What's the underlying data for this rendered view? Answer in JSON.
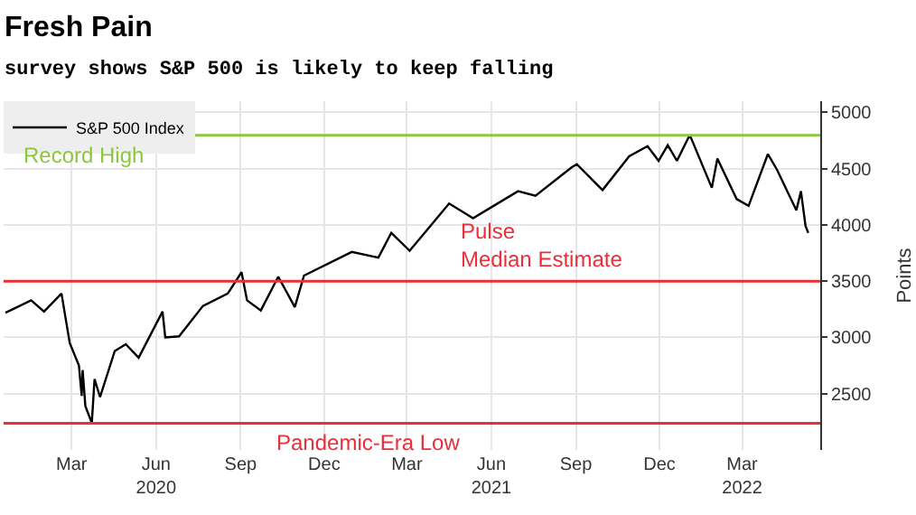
{
  "chart_data": {
    "type": "line",
    "title": "Fresh Pain",
    "subtitle": "survey shows S&P 500 is likely to keep falling",
    "ylabel": "Points",
    "x": [
      "2019-12-20",
      "2020-01-17",
      "2020-01-31",
      "2020-02-19",
      "2020-02-28",
      "2020-03-09",
      "2020-03-12",
      "2020-03-13",
      "2020-03-16",
      "2020-03-23",
      "2020-03-26",
      "2020-04-01",
      "2020-04-17",
      "2020-04-29",
      "2020-05-13",
      "2020-06-08",
      "2020-06-11",
      "2020-06-26",
      "2020-07-22",
      "2020-08-18",
      "2020-09-02",
      "2020-09-08",
      "2020-09-23",
      "2020-10-12",
      "2020-10-30",
      "2020-11-09",
      "2020-12-31",
      "2021-01-29",
      "2021-02-12",
      "2021-03-04",
      "2021-04-16",
      "2021-05-12",
      "2021-06-30",
      "2021-07-19",
      "2021-08-27",
      "2021-09-02",
      "2021-09-30",
      "2021-10-29",
      "2021-11-18",
      "2021-11-30",
      "2021-12-10",
      "2021-12-20",
      "2022-01-03",
      "2022-01-27",
      "2022-02-02",
      "2022-02-23",
      "2022-03-08",
      "2022-03-29",
      "2022-04-08",
      "2022-04-29",
      "2022-05-04",
      "2022-05-09",
      "2022-05-12"
    ],
    "series": [
      {
        "name": "S&P 500 Index",
        "color": "#000000",
        "values": [
          3220,
          3330,
          3230,
          3390,
          2950,
          2750,
          2480,
          2710,
          2390,
          2240,
          2630,
          2470,
          2880,
          2940,
          2820,
          3230,
          3000,
          3010,
          3280,
          3390,
          3580,
          3330,
          3240,
          3540,
          3270,
          3550,
          3760,
          3710,
          3930,
          3770,
          4190,
          4060,
          4300,
          4260,
          4510,
          4540,
          4310,
          4610,
          4700,
          4570,
          4710,
          4570,
          4800,
          4330,
          4590,
          4230,
          4170,
          4630,
          4490,
          4130,
          4300,
          3990,
          3930
        ]
      }
    ],
    "xlim": [
      "2019-12-18",
      "2022-05-25"
    ],
    "xticks": [
      {
        "value": "2020-03-01",
        "label": "Mar"
      },
      {
        "value": "2020-06-01",
        "label": "Jun\n2020"
      },
      {
        "value": "2020-09-01",
        "label": "Sep"
      },
      {
        "value": "2020-12-01",
        "label": "Dec"
      },
      {
        "value": "2021-03-01",
        "label": "Mar"
      },
      {
        "value": "2021-06-01",
        "label": "Jun\n2021"
      },
      {
        "value": "2021-09-01",
        "label": "Sep"
      },
      {
        "value": "2021-12-01",
        "label": "Dec"
      },
      {
        "value": "2022-03-01",
        "label": "Mar\n2022"
      }
    ],
    "ylim": [
      2000,
      5100
    ],
    "yticks": [
      2500,
      3000,
      3500,
      4000,
      4500,
      5000
    ],
    "ref_lines": [
      {
        "axis": "y",
        "value": 4797,
        "label": "Record High",
        "color": "#8dc63f"
      },
      {
        "axis": "y",
        "value": 3500,
        "label": "Pulse\nMedian Estimate",
        "color": "#e8303a"
      },
      {
        "axis": "y",
        "value": 2237,
        "label": "Pandemic-Era Low",
        "color": "#e8303a"
      }
    ],
    "grid": true,
    "legend": "top left",
    "line_style": "solid",
    "marker": "none"
  }
}
